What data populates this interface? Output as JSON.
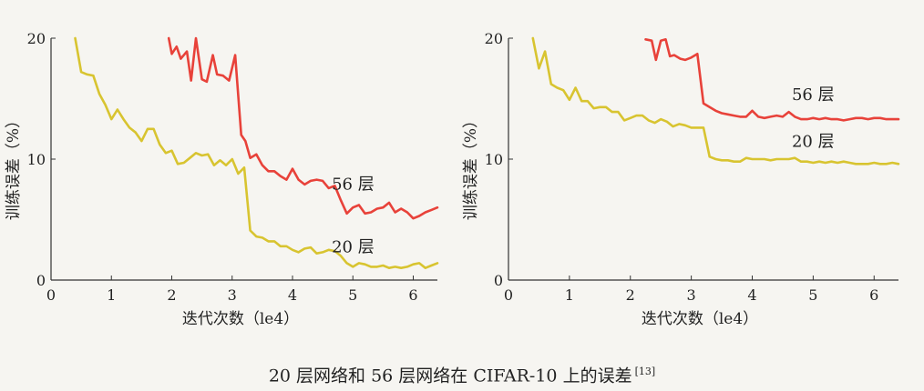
{
  "caption": {
    "text": "20 层网络和 56 层网络在 CIFAR-10 上的误差",
    "ref": "[13]"
  },
  "chart_data": [
    {
      "type": "line",
      "xlabel": "迭代次数（le4）",
      "ylabel": "训练误差（%）",
      "xlim": [
        0,
        6.4
      ],
      "ylim": [
        0,
        20
      ],
      "xticks": [
        0,
        1,
        2,
        3,
        4,
        5,
        6
      ],
      "yticks": [
        0,
        10,
        20
      ],
      "grid": false,
      "series": [
        {
          "name": "56 层",
          "color": "#e8423a",
          "x": [
            1.95,
            2.0,
            2.08,
            2.15,
            2.25,
            2.32,
            2.4,
            2.5,
            2.58,
            2.68,
            2.75,
            2.85,
            2.95,
            3.05,
            3.15,
            3.22,
            3.3,
            3.4,
            3.5,
            3.6,
            3.7,
            3.8,
            3.9,
            4.0,
            4.1,
            4.2,
            4.3,
            4.4,
            4.5,
            4.6,
            4.7,
            4.8,
            4.9,
            5.0,
            5.1,
            5.2,
            5.3,
            5.4,
            5.5,
            5.6,
            5.7,
            5.8,
            5.9,
            6.0,
            6.1,
            6.2,
            6.3,
            6.4
          ],
          "values": [
            20.0,
            18.7,
            19.3,
            18.3,
            18.9,
            16.5,
            20.0,
            16.6,
            16.4,
            18.6,
            17.0,
            16.9,
            16.5,
            18.6,
            12.0,
            11.5,
            10.1,
            10.4,
            9.5,
            9.0,
            9.0,
            8.6,
            8.3,
            9.2,
            8.3,
            7.9,
            8.2,
            8.3,
            8.2,
            7.6,
            7.8,
            6.6,
            5.5,
            6.0,
            6.2,
            5.5,
            5.6,
            5.9,
            6.0,
            6.4,
            5.6,
            5.9,
            5.6,
            5.1,
            5.3,
            5.6,
            5.8,
            6.0
          ]
        },
        {
          "name": "20 层",
          "color": "#d8c430",
          "x": [
            0.4,
            0.5,
            0.6,
            0.7,
            0.8,
            0.9,
            1.0,
            1.1,
            1.2,
            1.3,
            1.4,
            1.5,
            1.6,
            1.7,
            1.8,
            1.9,
            2.0,
            2.1,
            2.2,
            2.3,
            2.4,
            2.5,
            2.6,
            2.7,
            2.8,
            2.9,
            3.0,
            3.1,
            3.2,
            3.3,
            3.4,
            3.5,
            3.6,
            3.7,
            3.8,
            3.9,
            4.0,
            4.1,
            4.2,
            4.3,
            4.4,
            4.5,
            4.6,
            4.7,
            4.8,
            4.9,
            5.0,
            5.1,
            5.2,
            5.3,
            5.4,
            5.5,
            5.6,
            5.7,
            5.8,
            5.9,
            6.0,
            6.1,
            6.2,
            6.3,
            6.4
          ],
          "values": [
            20.0,
            17.2,
            17.0,
            16.9,
            15.4,
            14.5,
            13.3,
            14.1,
            13.3,
            12.6,
            12.2,
            11.5,
            12.5,
            12.5,
            11.2,
            10.5,
            10.7,
            9.6,
            9.7,
            10.1,
            10.5,
            10.3,
            10.4,
            9.5,
            9.9,
            9.5,
            10.0,
            8.8,
            9.3,
            4.1,
            3.6,
            3.5,
            3.2,
            3.2,
            2.8,
            2.8,
            2.5,
            2.3,
            2.6,
            2.7,
            2.2,
            2.3,
            2.5,
            2.4,
            2.0,
            1.4,
            1.1,
            1.4,
            1.3,
            1.1,
            1.1,
            1.2,
            1.0,
            1.1,
            1.0,
            1.1,
            1.3,
            1.4,
            1.0,
            1.2,
            1.4
          ]
        }
      ]
    },
    {
      "type": "line",
      "xlabel": "迭代次数（le4）",
      "ylabel": "训练误差（%）",
      "xlim": [
        0,
        6.4
      ],
      "ylim": [
        0,
        20
      ],
      "xticks": [
        0,
        1,
        2,
        3,
        4,
        5,
        6
      ],
      "yticks": [
        0,
        10,
        20
      ],
      "grid": false,
      "series": [
        {
          "name": "56 层",
          "color": "#e8423a",
          "x": [
            2.25,
            2.35,
            2.42,
            2.5,
            2.58,
            2.65,
            2.72,
            2.82,
            2.9,
            3.0,
            3.1,
            3.2,
            3.3,
            3.4,
            3.5,
            3.6,
            3.7,
            3.8,
            3.9,
            4.0,
            4.1,
            4.2,
            4.3,
            4.4,
            4.5,
            4.6,
            4.7,
            4.8,
            4.9,
            5.0,
            5.1,
            5.2,
            5.3,
            5.4,
            5.5,
            5.6,
            5.7,
            5.8,
            5.9,
            6.0,
            6.1,
            6.2,
            6.3,
            6.4
          ],
          "values": [
            19.9,
            19.8,
            18.2,
            19.8,
            19.9,
            18.5,
            18.6,
            18.3,
            18.2,
            18.4,
            18.7,
            14.6,
            14.3,
            14.0,
            13.8,
            13.7,
            13.6,
            13.5,
            13.5,
            14.0,
            13.5,
            13.4,
            13.5,
            13.6,
            13.5,
            13.9,
            13.5,
            13.3,
            13.3,
            13.4,
            13.3,
            13.4,
            13.3,
            13.3,
            13.2,
            13.3,
            13.4,
            13.4,
            13.3,
            13.4,
            13.4,
            13.3,
            13.3,
            13.3
          ]
        },
        {
          "name": "20 层",
          "color": "#d8c430",
          "x": [
            0.4,
            0.5,
            0.6,
            0.7,
            0.8,
            0.9,
            1.0,
            1.1,
            1.2,
            1.3,
            1.4,
            1.5,
            1.6,
            1.7,
            1.8,
            1.9,
            2.0,
            2.1,
            2.2,
            2.3,
            2.4,
            2.5,
            2.6,
            2.7,
            2.8,
            2.9,
            3.0,
            3.1,
            3.2,
            3.3,
            3.4,
            3.5,
            3.6,
            3.7,
            3.8,
            3.9,
            4.0,
            4.1,
            4.2,
            4.3,
            4.4,
            4.5,
            4.6,
            4.7,
            4.8,
            4.9,
            5.0,
            5.1,
            5.2,
            5.3,
            5.4,
            5.5,
            5.6,
            5.7,
            5.8,
            5.9,
            6.0,
            6.1,
            6.2,
            6.3,
            6.4
          ],
          "values": [
            20.0,
            17.5,
            18.9,
            16.2,
            15.9,
            15.7,
            14.9,
            15.9,
            14.8,
            14.8,
            14.2,
            14.3,
            14.3,
            13.9,
            13.9,
            13.2,
            13.4,
            13.6,
            13.6,
            13.2,
            13.0,
            13.3,
            13.1,
            12.7,
            12.9,
            12.8,
            12.6,
            12.6,
            12.6,
            10.2,
            10.0,
            9.9,
            9.9,
            9.8,
            9.8,
            10.1,
            10.0,
            10.0,
            10.0,
            9.9,
            10.0,
            10.0,
            10.0,
            10.1,
            9.8,
            9.8,
            9.7,
            9.8,
            9.7,
            9.8,
            9.7,
            9.8,
            9.7,
            9.6,
            9.6,
            9.6,
            9.7,
            9.6,
            9.6,
            9.7,
            9.6
          ]
        }
      ]
    }
  ]
}
